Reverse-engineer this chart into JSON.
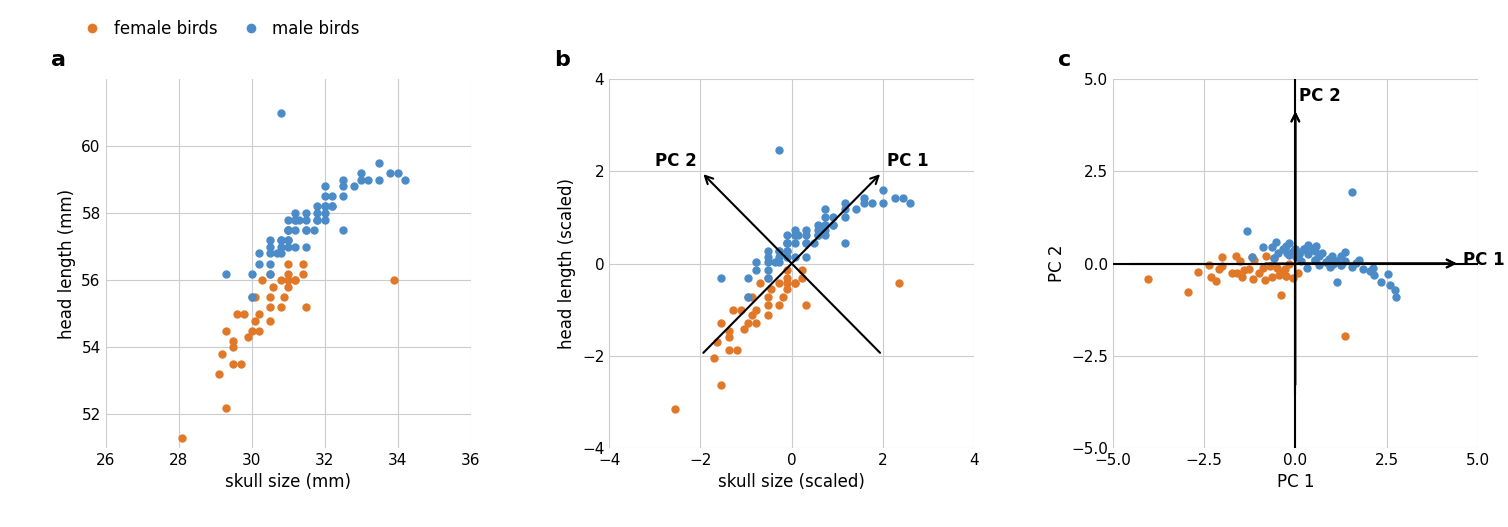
{
  "female_skull": [
    28.1,
    29.3,
    29.1,
    29.5,
    29.5,
    29.2,
    29.7,
    29.5,
    29.9,
    29.3,
    30.0,
    29.8,
    30.2,
    29.6,
    30.1,
    30.2,
    30.5,
    30.0,
    30.5,
    30.5,
    30.1,
    30.8,
    30.6,
    30.3,
    30.9,
    31.0,
    31.0,
    30.5,
    30.8,
    31.2,
    31.0,
    31.0,
    31.2,
    31.4,
    31.4,
    31.5,
    33.9
  ],
  "female_head": [
    51.3,
    52.2,
    53.2,
    53.5,
    54.0,
    53.8,
    53.5,
    54.2,
    54.3,
    54.5,
    54.5,
    55.0,
    54.5,
    55.0,
    54.8,
    55.0,
    54.8,
    55.5,
    55.2,
    55.5,
    55.5,
    55.2,
    55.8,
    56.0,
    55.5,
    55.8,
    56.0,
    56.2,
    56.0,
    56.0,
    56.2,
    56.5,
    56.0,
    56.5,
    56.2,
    55.2,
    56.0
  ],
  "male_skull": [
    29.3,
    30.0,
    30.0,
    30.2,
    30.2,
    30.5,
    30.5,
    30.5,
    30.7,
    30.8,
    30.5,
    30.8,
    30.8,
    31.0,
    31.0,
    31.0,
    31.0,
    31.0,
    31.2,
    31.2,
    31.2,
    31.2,
    31.5,
    31.5,
    31.5,
    31.5,
    31.7,
    31.8,
    31.8,
    32.0,
    32.0,
    32.0,
    32.0,
    32.0,
    32.2,
    32.2,
    32.5,
    32.5,
    32.5,
    32.8,
    33.0,
    33.0,
    33.2,
    33.5,
    33.5,
    33.8,
    34.0,
    34.2,
    31.0,
    31.2,
    31.5,
    31.8,
    32.2,
    32.5,
    30.8,
    31.3,
    31.0,
    30.5,
    31.8,
    32.0
  ],
  "male_head": [
    56.2,
    55.5,
    56.2,
    56.5,
    56.8,
    56.2,
    57.0,
    56.5,
    56.8,
    57.0,
    57.2,
    56.8,
    57.2,
    57.0,
    57.2,
    57.5,
    57.5,
    57.8,
    57.0,
    57.5,
    57.8,
    58.0,
    57.0,
    57.5,
    57.8,
    58.0,
    57.5,
    57.8,
    58.2,
    57.8,
    58.0,
    58.2,
    58.5,
    58.8,
    58.2,
    58.5,
    58.5,
    58.8,
    59.0,
    58.8,
    59.0,
    59.2,
    59.0,
    59.0,
    59.5,
    59.2,
    59.2,
    59.0,
    57.5,
    57.8,
    57.5,
    57.8,
    58.2,
    57.5,
    57.2,
    57.8,
    57.2,
    56.8,
    58.0,
    58.2
  ],
  "male_outlier_skull": [
    30.8
  ],
  "male_outlier_head": [
    61.0
  ],
  "female_color": "#E07828",
  "male_color": "#4B8BC8",
  "panel_label_fontsize": 16,
  "axis_label_fontsize": 12,
  "tick_fontsize": 11,
  "legend_fontsize": 12,
  "dot_size": 25,
  "background_color": "#ffffff",
  "grid_color": "#cccccc",
  "panel_a_xlim": [
    26,
    36
  ],
  "panel_a_ylim": [
    51,
    62
  ],
  "panel_a_xticks": [
    26,
    28,
    30,
    32,
    34,
    36
  ],
  "panel_a_yticks": [
    52,
    54,
    56,
    58,
    60
  ],
  "panel_b_xlim": [
    -4,
    4
  ],
  "panel_b_ylim": [
    -4,
    4
  ],
  "panel_b_xticks": [
    -4.0,
    -2.0,
    0.0,
    2.0,
    4.0
  ],
  "panel_b_yticks": [
    -4.0,
    -2.0,
    0.0,
    2.0,
    4.0
  ],
  "panel_c_xlim": [
    -5,
    5
  ],
  "panel_c_ylim": [
    -5,
    5
  ],
  "panel_c_xticks": [
    -5.0,
    -2.5,
    0.0,
    2.5,
    5.0
  ],
  "panel_c_yticks": [
    -5.0,
    -2.5,
    0.0,
    2.5,
    5.0
  ]
}
